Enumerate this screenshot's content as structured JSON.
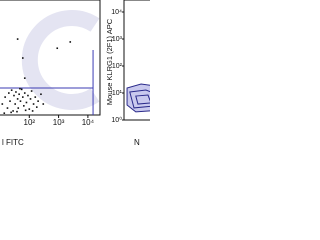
{
  "chart_data": [
    {
      "type": "scatter",
      "x_label": "l FITC",
      "log_x": true,
      "log_y": true,
      "xlim": [
        9.25,
        25900
      ],
      "ylim": [
        1,
        100000
      ],
      "xticks": [
        {
          "value": 100,
          "label": "10²"
        },
        {
          "value": 1000,
          "label": "10³"
        },
        {
          "value": 10000,
          "label": "10⁴"
        }
      ],
      "color": "#111111",
      "gate_color": "#3b3bb3",
      "gate_x": 15000,
      "gate_y": 15,
      "x": [
        12,
        15,
        18,
        20,
        22,
        25,
        28,
        30,
        33,
        35,
        40,
        42,
        45,
        50,
        55,
        60,
        65,
        70,
        80,
        90,
        100,
        110,
        120,
        140,
        160,
        180,
        200,
        250,
        300,
        14,
        24,
        38,
        48,
        75,
        130,
        60,
        40,
        900,
        2500,
        70
      ],
      "y": [
        3,
        6,
        2,
        9,
        4,
        12,
        1.5,
        7,
        3,
        10,
        5,
        2,
        8,
        4,
        13,
        6,
        2.5,
        9,
        3.5,
        7,
        1.8,
        5,
        11,
        3,
        6,
        2.2,
        4,
        8,
        3,
        1.2,
        1.3,
        1.4,
        14,
        1.6,
        1.5,
        300,
        2000,
        800,
        1500,
        40
      ]
    },
    {
      "type": "contour",
      "y_label": "Mouse KLRG1 (2F1) APC",
      "x_label": "N",
      "log_x": true,
      "log_y": true,
      "xlim": [
        1,
        100000
      ],
      "ylim": [
        1,
        27800
      ],
      "yticks": [
        {
          "value": 1,
          "label": "10⁰"
        },
        {
          "value": 10,
          "label": "10¹"
        },
        {
          "value": 100,
          "label": "10²"
        },
        {
          "value": 1000,
          "label": "10³"
        },
        {
          "value": 10000,
          "label": "10⁴"
        }
      ],
      "color": "#2a2a8a",
      "fill": "#c9c9ee",
      "contours": [
        {
          "x": [
            1.28,
            4,
            13.4,
            15.7,
            2.6,
            1.28
          ],
          "y": [
            15.3,
            21.6,
            18.1,
            2.3,
            2,
            3.6
          ]
        },
        {
          "x": [
            1.6,
            5.9,
            13.4,
            11.4,
            2.25
          ],
          "y": [
            10.9,
            12.9,
            9.2,
            3.3,
            2.8
          ]
        },
        {
          "x": [
            2.6,
            7,
            8.9,
            3.1
          ],
          "y": [
            7.7,
            8.4,
            4.3,
            3.9
          ]
        }
      ]
    }
  ]
}
